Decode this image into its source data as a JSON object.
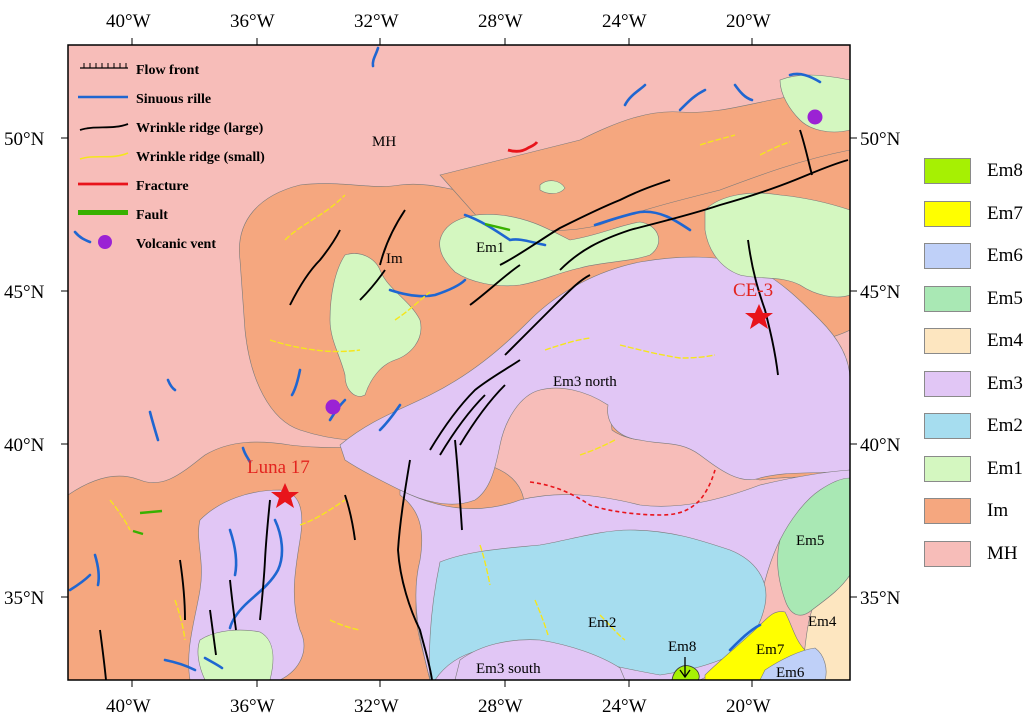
{
  "map": {
    "top_lon_labels": [
      "40°W",
      "36°W",
      "32°W",
      "28°W",
      "24°W",
      "20°W"
    ],
    "bottom_lon_labels": [
      "40°W",
      "36°W",
      "32°W",
      "28°W",
      "24°W",
      "20°W"
    ],
    "left_lat_labels": [
      "50°N",
      "45°N",
      "40°N",
      "35°N"
    ],
    "right_lat_labels": [
      "50°N",
      "45°N",
      "40°N",
      "35°N"
    ],
    "unit_labels": {
      "mh": "MH",
      "im": "Im",
      "em1": "Em1",
      "em3_north": "Em3 north",
      "em2": "Em2",
      "em3_south": "Em3 south",
      "em8": "Em8",
      "em7": "Em7",
      "em6": "Em6",
      "em5": "Em5",
      "em4": "Em4"
    },
    "sites": {
      "luna17": "Luna 17",
      "ce3": "CE-3"
    }
  },
  "feature_legend": {
    "flow_front": "Flow front",
    "sinuous_rille": "Sinuous rille",
    "wrinkle_large": "Wrinkle ridge (large)",
    "wrinkle_small": "Wrinkle ridge (small)",
    "fracture": "Fracture",
    "fault": "Fault",
    "volcanic_vent": "Volcanic vent"
  },
  "unit_legend": [
    {
      "label": "Em8",
      "color": "#a6f003"
    },
    {
      "label": "Em7",
      "color": "#ffff00"
    },
    {
      "label": "Em6",
      "color": "#bfd0f8"
    },
    {
      "label": "Em5",
      "color": "#a9e8b4"
    },
    {
      "label": "Em4",
      "color": "#fde6c0"
    },
    {
      "label": "Em3",
      "color": "#e1c6f5"
    },
    {
      "label": "Em2",
      "color": "#a6ddef"
    },
    {
      "label": "Em1",
      "color": "#d4f7c0"
    },
    {
      "label": "Im",
      "color": "#f5a77f"
    },
    {
      "label": "MH",
      "color": "#f7bdb9"
    }
  ],
  "colors": {
    "mh": "#f7bdb9",
    "im": "#f5a77f",
    "em1": "#d4f7c0",
    "em2": "#a6ddef",
    "em3": "#e1c6f5",
    "em4": "#fde6c0",
    "em5": "#a9e8b4",
    "em6": "#bfd0f8",
    "em7": "#ffff00",
    "em8": "#a6f003",
    "rille": "#1f66d1",
    "wrinkle_small": "#f5e61c",
    "fracture": "#e8141b",
    "fault": "#38b000",
    "vent": "#9b22d4",
    "site": "#e3241f"
  }
}
